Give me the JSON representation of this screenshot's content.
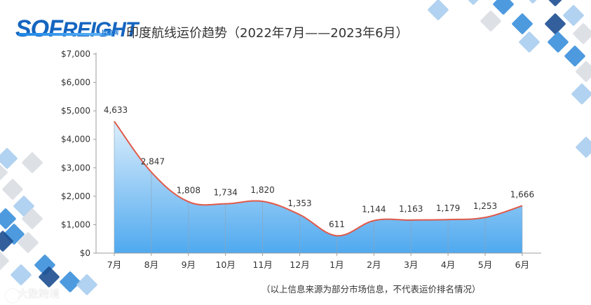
{
  "logo": {
    "brand_big": "SOF",
    "brand_rest": "REIGHT",
    "sub": "搜航网"
  },
  "title": "印度航线运价趋势（2022年7月——2023年6月）",
  "note": "（以上信息来源为部分市场信息，不代表运价排名情况）",
  "watermark": "大数跨境",
  "colors": {
    "line": "#e05a4a",
    "area_top": "#dceefc",
    "area_bottom": "#4fa9ef",
    "axis": "#9e9e9e",
    "text": "#333333",
    "tile_dark": "#1d4f91",
    "tile_mid": "#3a8fdc",
    "tile_light": "#a9cdee",
    "tile_grey": "#d9dde2"
  },
  "chart_data": {
    "type": "area",
    "title": "印度航线运价趋势（2022年7月——2023年6月）",
    "categories": [
      "7月",
      "8月",
      "9月",
      "10月",
      "11月",
      "12月",
      "1月",
      "2月",
      "3月",
      "4月",
      "5月",
      "6月"
    ],
    "values": [
      4633,
      2847,
      1808,
      1734,
      1820,
      1353,
      611,
      1144,
      1163,
      1179,
      1253,
      1666
    ],
    "value_labels": [
      "4,633",
      "2,847",
      "1,808",
      "1,734",
      "1,820",
      "1,353",
      "611",
      "1,144",
      "1,163",
      "1,179",
      "1,253",
      "1,666"
    ],
    "y_ticks": [
      "$0",
      "$1,000",
      "$2,000",
      "$3,000",
      "$4,000",
      "$5,000",
      "$6,000",
      "$7,000"
    ],
    "ylim": [
      0,
      7000
    ],
    "grid": false,
    "smooth": true
  }
}
